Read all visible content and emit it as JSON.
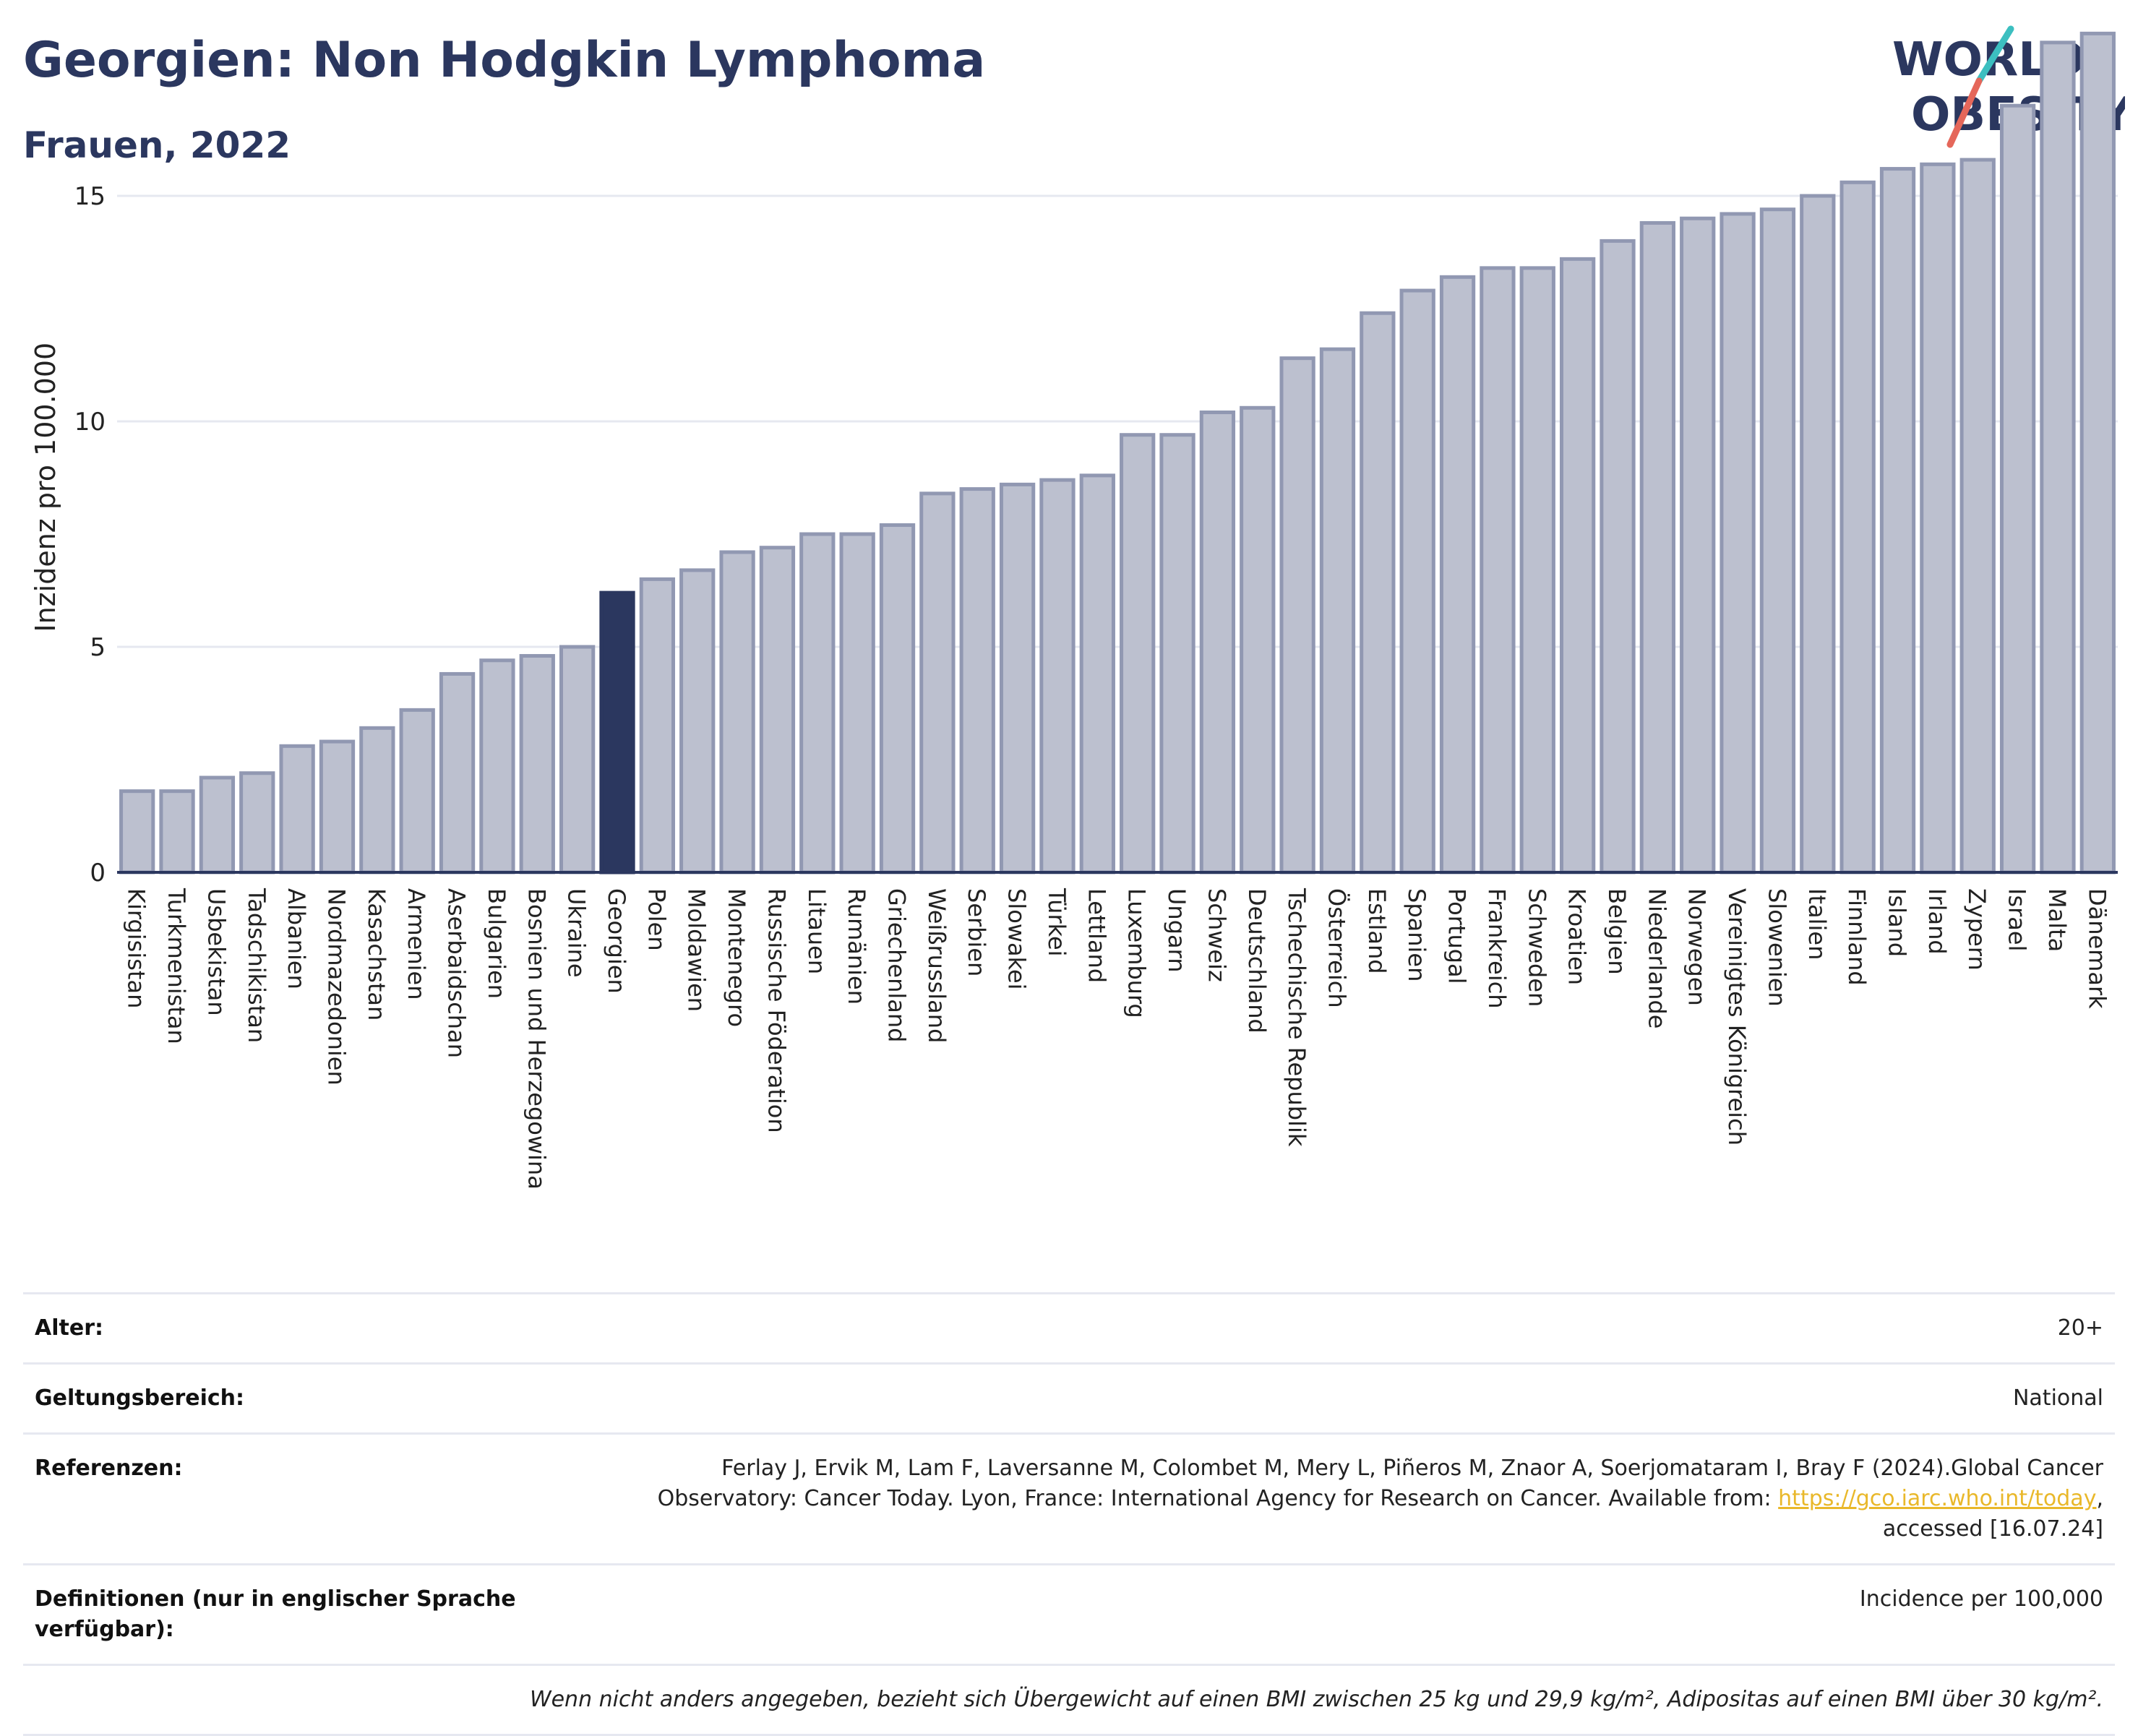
{
  "title": "Georgien: Non Hodgkin Lymphoma",
  "subtitle": "Frauen, 2022",
  "logo": {
    "line1": "WORLD",
    "line2": "OBESITY",
    "accent_colors": [
      "#3cbfc0",
      "#e5675a"
    ]
  },
  "colors": {
    "bar": "#bcc0cf",
    "bar_border": "#9198b2",
    "highlight": "#2b375f",
    "grid": "#e6e8f0",
    "axis": "#2b375f"
  },
  "chart_data": {
    "type": "bar",
    "ylabel": "Inzidenz pro 100.000",
    "xlabel": "",
    "ylim": [
      0,
      19
    ],
    "yticks": [
      0,
      5,
      10,
      15
    ],
    "highlight": "Georgien",
    "grid": true,
    "categories": [
      "Kirgisistan",
      "Turkmenistan",
      "Usbekistan",
      "Tadschikistan",
      "Albanien",
      "Nordmazedonien",
      "Kasachstan",
      "Armenien",
      "Aserbaidschan",
      "Bulgarien",
      "Bosnien und Herzegowina",
      "Ukraine",
      "Georgien",
      "Polen",
      "Moldawien",
      "Montenegro",
      "Russische Föderation",
      "Litauen",
      "Rumänien",
      "Griechenland",
      "Weißrussland",
      "Serbien",
      "Slowakei",
      "Türkei",
      "Lettland",
      "Luxemburg",
      "Ungarn",
      "Schweiz",
      "Deutschland",
      "Tschechische Republik",
      "Österreich",
      "Estland",
      "Spanien",
      "Portugal",
      "Frankreich",
      "Schweden",
      "Kroatien",
      "Belgien",
      "Niederlande",
      "Norwegen",
      "Vereinigtes Königreich",
      "Slowenien",
      "Italien",
      "Finnland",
      "Island",
      "Irland",
      "Zypern",
      "Israel",
      "Malta",
      "Dänemark"
    ],
    "values": [
      1.8,
      1.8,
      2.1,
      2.2,
      2.8,
      2.9,
      3.2,
      3.6,
      4.4,
      4.7,
      4.8,
      5.0,
      6.2,
      6.5,
      6.7,
      7.1,
      7.2,
      7.5,
      7.5,
      7.7,
      8.4,
      8.5,
      8.6,
      8.7,
      8.8,
      9.7,
      9.7,
      10.2,
      10.3,
      11.4,
      11.6,
      12.4,
      12.9,
      13.2,
      13.4,
      13.4,
      13.6,
      14.0,
      14.4,
      14.5,
      14.6,
      14.7,
      15.0,
      15.3,
      15.6,
      15.7,
      15.8,
      17.0,
      18.4,
      18.6
    ]
  },
  "info": {
    "age_label": "Alter:",
    "age_value": "20+",
    "scope_label": "Geltungsbereich:",
    "scope_value": "National",
    "refs_label": "Referenzen:",
    "refs_text_1": "Ferlay J, Ervik M, Lam F, Laversanne M, Colombet M, Mery L, Piñeros M, Znaor A, Soerjomataram I, Bray F (2024).Global Cancer",
    "refs_text_2": "Observatory: Cancer Today. Lyon, France: International Agency for Research on Cancer. Available from: ",
    "refs_link": "https://gco.iarc.who.int/today",
    "refs_text_3": ",",
    "refs_text_4": "accessed [16.07.24]",
    "def_label_1": "Definitionen (nur in englischer Sprache",
    "def_label_2": "verfügbar):",
    "def_value": "Incidence per 100,000",
    "note": "Wenn nicht anders angegeben, bezieht sich Übergewicht auf einen BMI zwischen 25 kg und 29,9 kg/m², Adipositas auf einen BMI über 30 kg/m²."
  }
}
